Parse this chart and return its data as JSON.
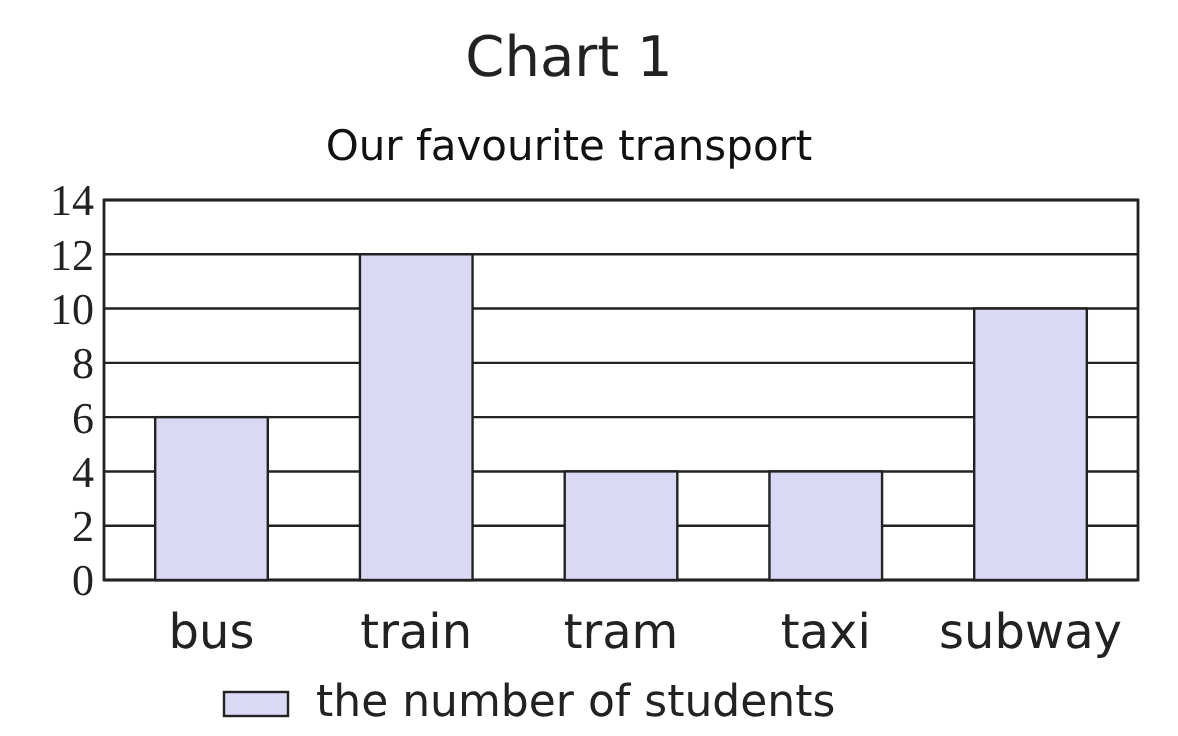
{
  "chart_data": {
    "type": "bar",
    "title": "Chart 1",
    "subtitle": "Our favourite transport",
    "categories": [
      "bus",
      "train",
      "tram",
      "taxi",
      "subway"
    ],
    "series": [
      {
        "name": "the number of students",
        "color": "#d9d9f5",
        "values": [
          6,
          12,
          4,
          4,
          10
        ]
      }
    ],
    "ylim": [
      0,
      14
    ],
    "yticks": [
      0,
      2,
      4,
      6,
      8,
      10,
      12,
      14
    ],
    "grid": "y",
    "legend": "bottom"
  }
}
